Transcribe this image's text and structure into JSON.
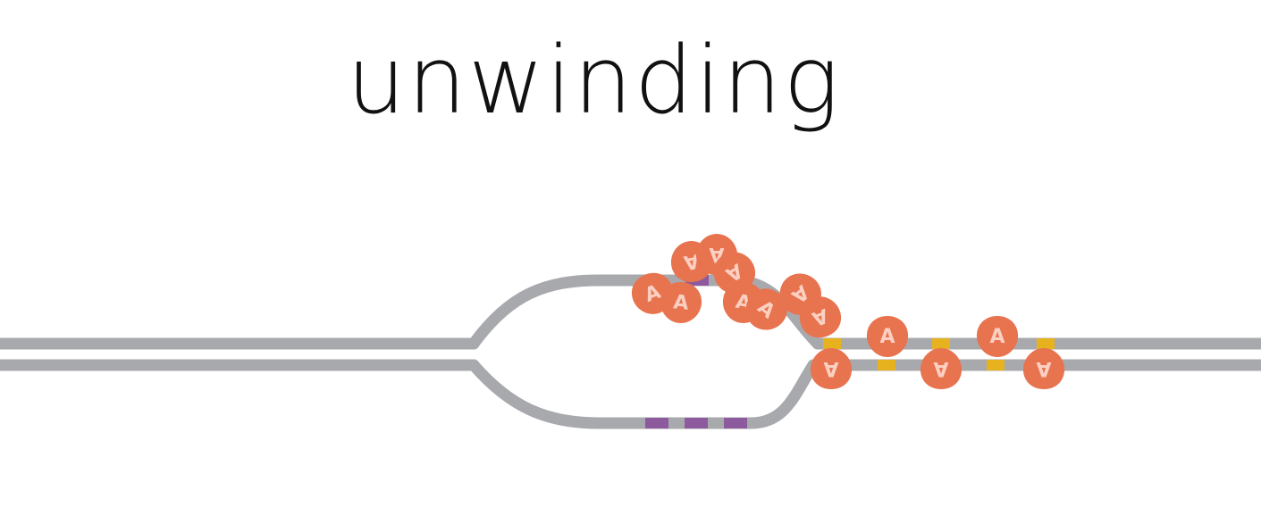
{
  "title": "unwinding",
  "protein_label": "A",
  "colors": {
    "background": "#ffffff",
    "strand": "#a8a9ad",
    "protein": "#e8734f",
    "protein_label": "#fbd0c2",
    "marker_purple": "#8e5a9e",
    "marker_yellow": "#e6b31e",
    "title_text": "#111111"
  },
  "icons": {
    "protein": "initiator-protein-icon",
    "strand": "dna-strand"
  }
}
